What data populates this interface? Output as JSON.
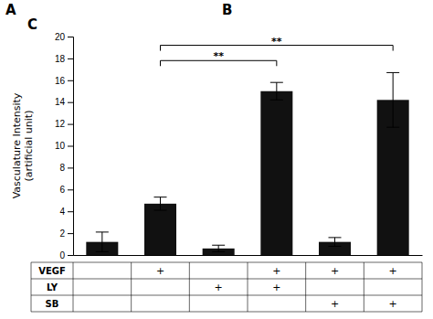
{
  "chart_data": {
    "type": "bar",
    "title": "C",
    "ylabel": "Vasculature Intensity\n(artificial unit)",
    "categories": [
      null,
      null,
      null,
      null,
      null,
      null
    ],
    "values": [
      1.2,
      4.7,
      0.6,
      15.0,
      1.2,
      14.2
    ],
    "errors": [
      0.9,
      0.6,
      0.3,
      0.8,
      0.4,
      2.5
    ],
    "color": "#111111",
    "ylim": [
      0,
      20
    ],
    "yticks": [
      0,
      2,
      4,
      6,
      8,
      10,
      12,
      14,
      16,
      18,
      20
    ],
    "brackets": [
      {
        "from": 1,
        "to": 3,
        "y": 17.8,
        "label": "**"
      },
      {
        "from": 1,
        "to": 5,
        "y": 19.2,
        "label": "**"
      }
    ],
    "table": {
      "rows": [
        "VEGF",
        "LY",
        "SB"
      ],
      "cells": [
        [
          null,
          "+",
          null,
          "+",
          "+",
          "+"
        ],
        [
          null,
          null,
          "+",
          "+",
          null,
          null
        ],
        [
          null,
          null,
          null,
          null,
          "+",
          "+"
        ]
      ]
    },
    "panel_labels": [
      "A",
      "B"
    ]
  }
}
